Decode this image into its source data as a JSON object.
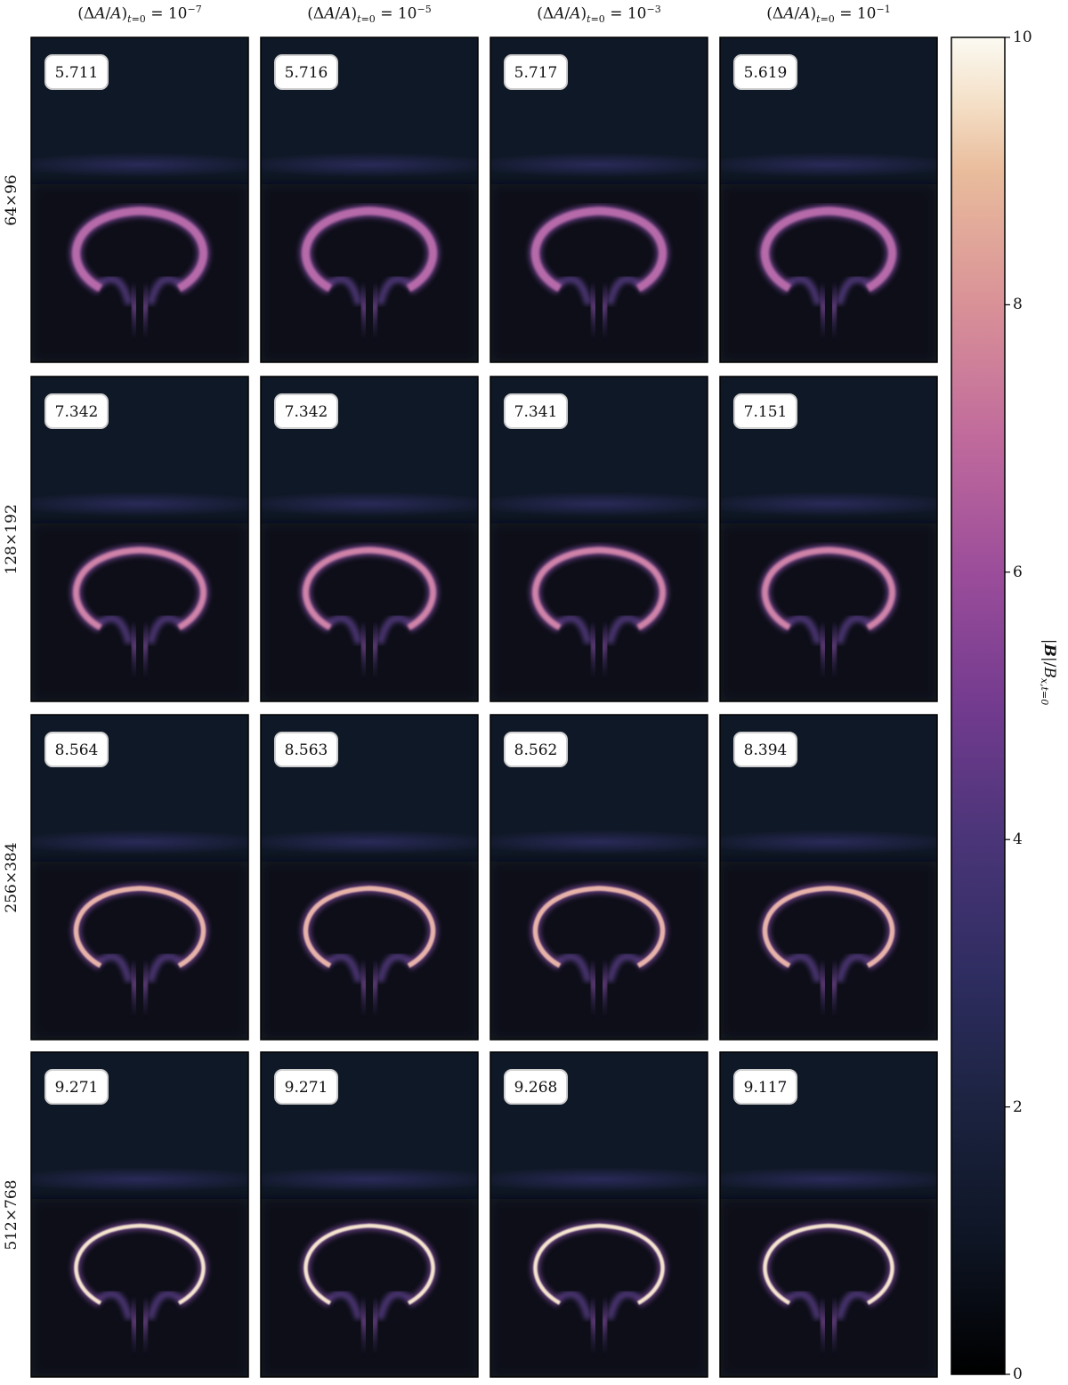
{
  "chart_data": {
    "type": "heatmap",
    "description_axis": "columns: initial perturbation amplitude; rows: grid resolution",
    "column_titles": [
      {
        "exponent": "−7"
      },
      {
        "exponent": "−5"
      },
      {
        "exponent": "−3"
      },
      {
        "exponent": "−1"
      }
    ],
    "row_labels": [
      "64×96",
      "128×192",
      "256×384",
      "512×768"
    ],
    "panel_values": [
      [
        "5.711",
        "5.716",
        "5.717",
        "5.619"
      ],
      [
        "7.342",
        "7.342",
        "7.341",
        "7.151"
      ],
      [
        "8.564",
        "8.563",
        "8.562",
        "8.394"
      ],
      [
        "9.271",
        "9.271",
        "9.268",
        "9.117"
      ]
    ],
    "colorbar": {
      "ticks": [
        "0",
        "2",
        "4",
        "6",
        "8",
        "10"
      ],
      "range": [
        0,
        10
      ],
      "colormap_stops": [
        "#000000",
        "#0e1524",
        "#1b2340",
        "#2f2d61",
        "#4a3578",
        "#733b8f",
        "#9b4d9a",
        "#c06a9c",
        "#d99197",
        "#e9bc9c",
        "#f4dfc6",
        "#fbfaf2"
      ]
    }
  }
}
